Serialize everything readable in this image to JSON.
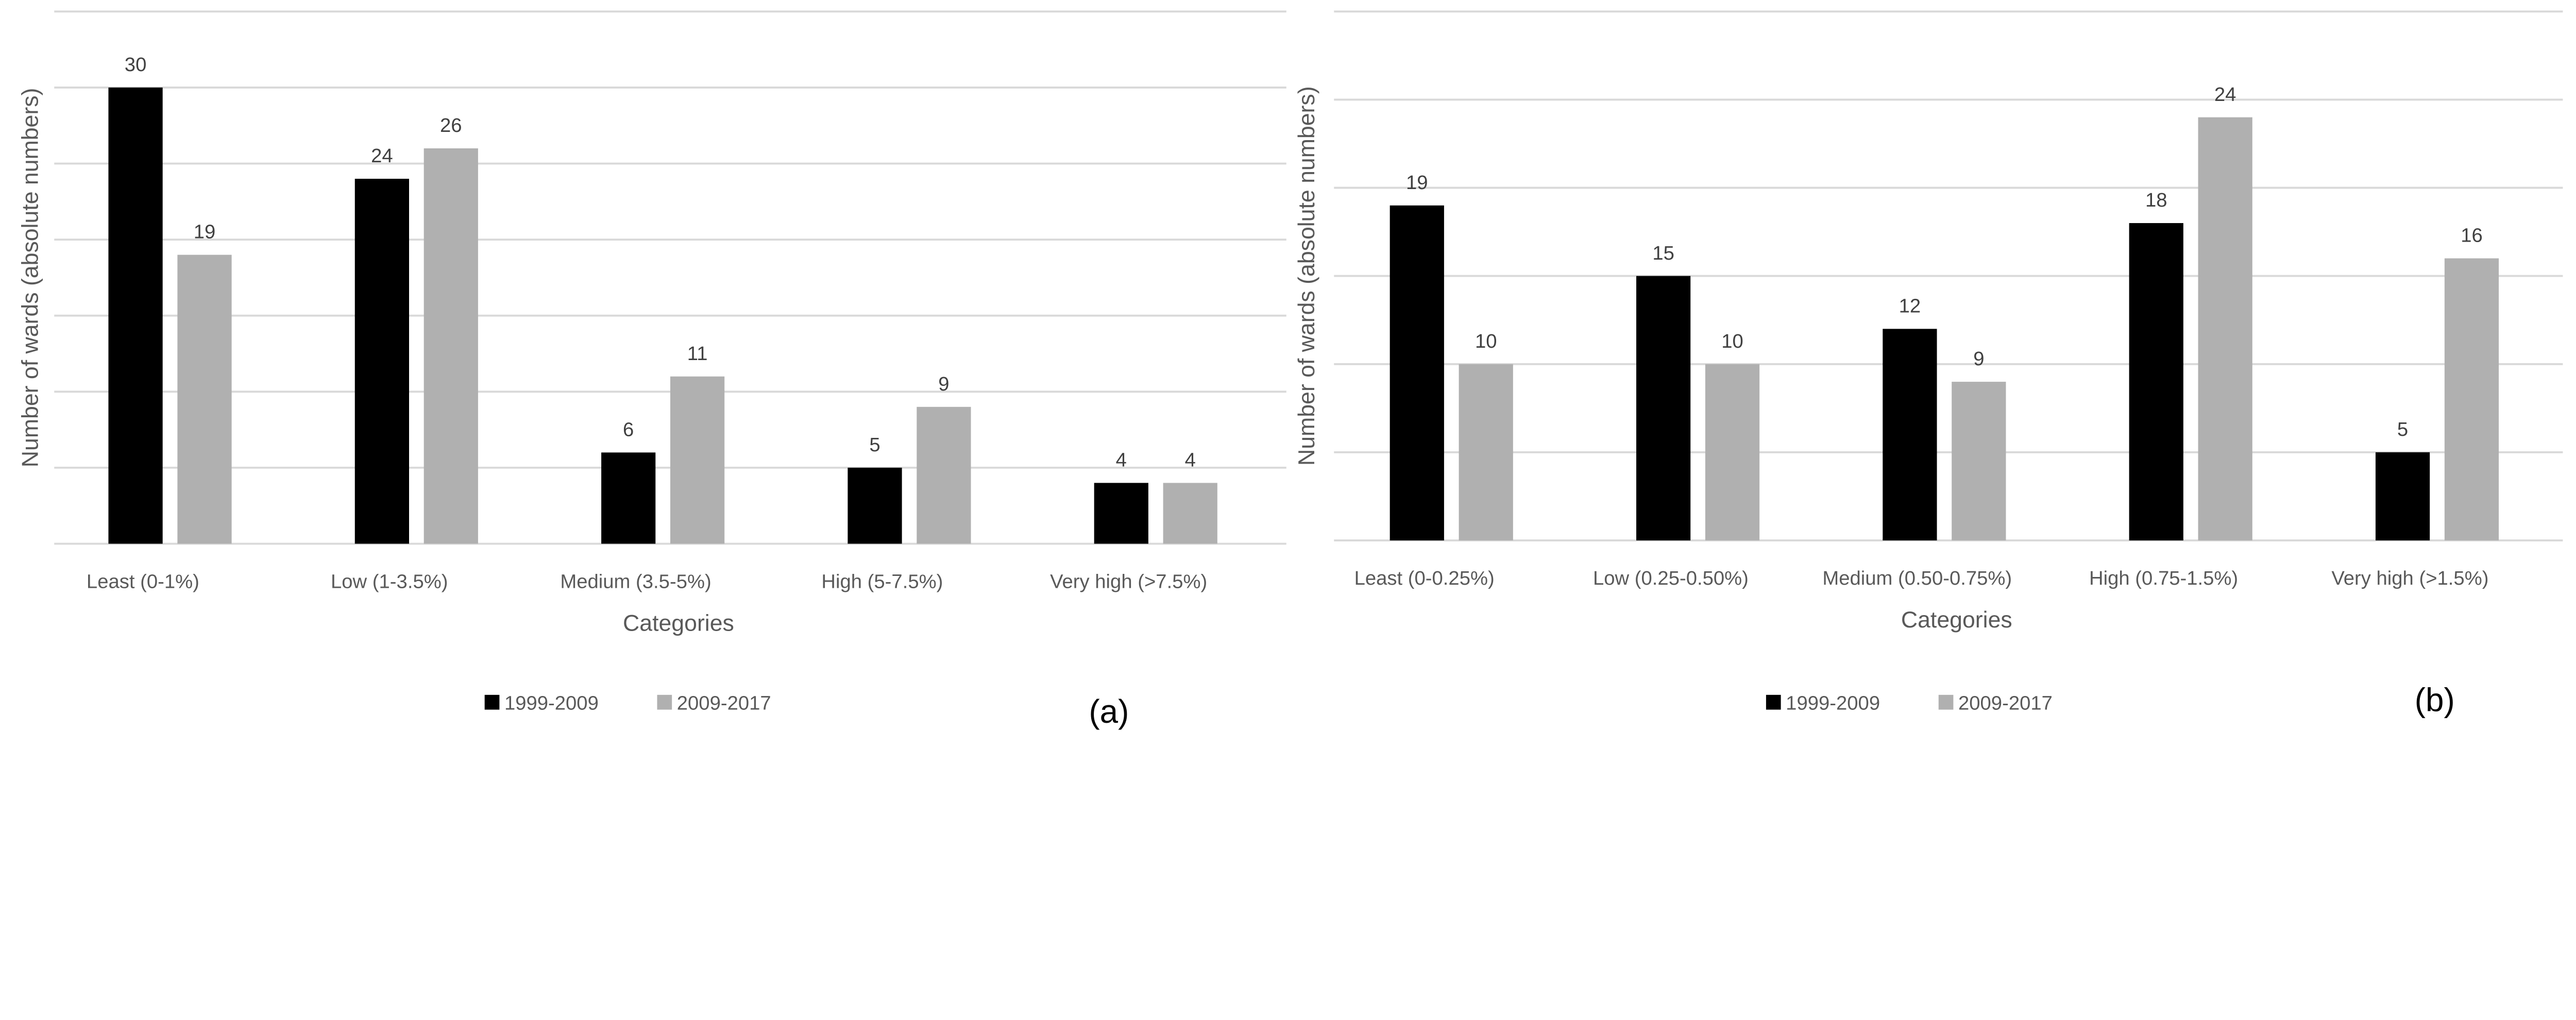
{
  "colors": {
    "series1": "#000000",
    "series2": "#b0b0b0",
    "grid": "#d9d9d9"
  },
  "chart_data": [
    {
      "type": "bar",
      "panel_label": "(a)",
      "categories": [
        "Least (0-1%)",
        "Low (1-3.5%)",
        "Medium (3.5-5%)",
        "High (5-7.5%)",
        "Very high (>7.5%)"
      ],
      "series": [
        {
          "name": "1999-2009",
          "values": [
            30,
            24,
            6,
            5,
            4
          ]
        },
        {
          "name": "2009-2017",
          "values": [
            19,
            26,
            11,
            9,
            4
          ]
        }
      ],
      "xlabel": "Categories",
      "ylabel": "Number of wards (absolute numbers)",
      "ylim": [
        0,
        35
      ],
      "grid_step": 5,
      "grid": true,
      "legend": "bottom"
    },
    {
      "type": "bar",
      "panel_label": "(b)",
      "categories": [
        "Least (0-0.25%)",
        "Low (0.25-0.50%)",
        "Medium (0.50-0.75%)",
        "High (0.75-1.5%)",
        "Very high (>1.5%)"
      ],
      "series": [
        {
          "name": "1999-2009",
          "values": [
            19,
            15,
            12,
            18,
            5
          ]
        },
        {
          "name": "2009-2017",
          "values": [
            10,
            10,
            9,
            24,
            16
          ]
        }
      ],
      "xlabel": "Categories",
      "ylabel": "Number of wards (absolute numbers)",
      "ylim": [
        0,
        30
      ],
      "grid_step": 5,
      "grid": true,
      "legend": "bottom"
    }
  ]
}
